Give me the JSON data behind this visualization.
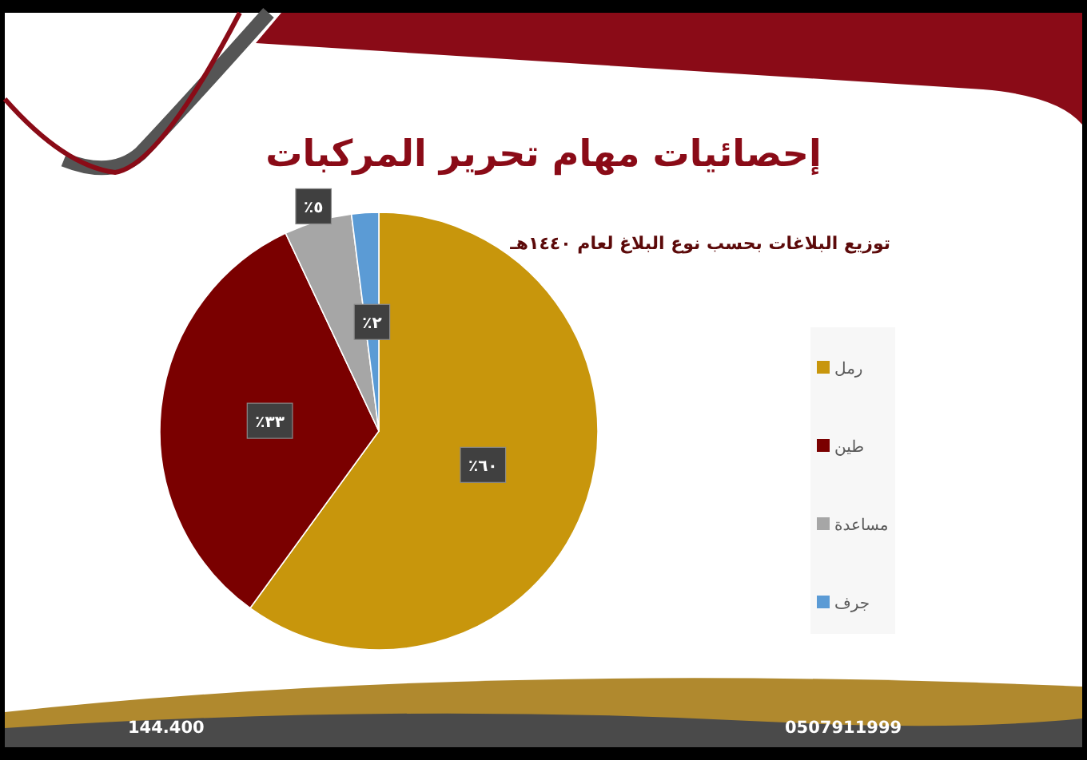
{
  "chart_data": {
    "type": "pie",
    "title": "إحصائيات مهام تحرير المركبات",
    "subtitle": "توزيع البلاغات بحسب نوع البلاغ لعام ١٤٤٠هـ",
    "categories": [
      "رمل",
      "طين",
      "مساعدة",
      "جرف"
    ],
    "values": [
      60,
      33,
      5,
      2
    ],
    "colors": [
      "#c8960c",
      "#7a0000",
      "#a6a6a6",
      "#5b9bd5"
    ],
    "value_labels": [
      "٦٠٪",
      "٣٣٪",
      "٥٪",
      "٢٪"
    ],
    "legend": "right",
    "annotations": [
      "144.400",
      "0507911999"
    ]
  }
}
